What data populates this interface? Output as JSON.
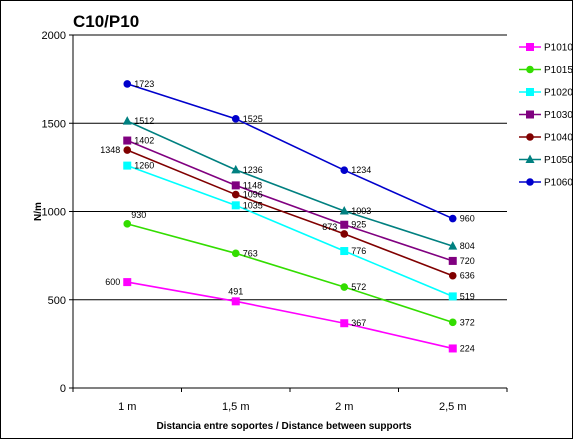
{
  "chart_data": {
    "type": "line",
    "title": "C10/P10",
    "xlabel": "Distancia entre soportes / Distance between supports",
    "ylabel": "N/m",
    "ylim": [
      0,
      2000
    ],
    "yticks": [
      0,
      500,
      1000,
      1500,
      2000
    ],
    "grid": "horizontal",
    "legend_position": "right",
    "categories": [
      "1 m",
      "1,5 m",
      "2 m",
      "2,5 m"
    ],
    "series": [
      {
        "name": "P1010",
        "color": "#ff00ff",
        "marker": "square",
        "values": [
          600,
          491,
          367,
          224
        ],
        "labels": [
          "600",
          "491",
          "367",
          "224"
        ]
      },
      {
        "name": "P1015",
        "color": "#33dd00",
        "marker": "circle",
        "values": [
          930,
          763,
          572,
          372
        ],
        "labels": [
          "930",
          "763",
          "572",
          "372"
        ]
      },
      {
        "name": "P1020",
        "color": "#00ffff",
        "marker": "square",
        "values": [
          1260,
          1035,
          776,
          519
        ],
        "labels": [
          "1260",
          "1035",
          "776",
          "519"
        ]
      },
      {
        "name": "P1030",
        "color": "#800080",
        "marker": "square",
        "values": [
          1402,
          1148,
          925,
          720
        ],
        "labels": [
          "1402",
          "1148",
          "925",
          "720"
        ]
      },
      {
        "name": "P1040",
        "color": "#800000",
        "marker": "circle",
        "values": [
          1348,
          1096,
          873,
          636
        ],
        "labels": [
          "1348",
          "1096",
          "873",
          "636"
        ]
      },
      {
        "name": "P1050",
        "color": "#008080",
        "marker": "triangle",
        "values": [
          1512,
          1236,
          1003,
          804
        ],
        "labels": [
          "1512",
          "1236",
          "1003",
          "804"
        ]
      },
      {
        "name": "P1060",
        "color": "#0000cc",
        "marker": "circle",
        "values": [
          1723,
          1525,
          1234,
          960
        ],
        "labels": [
          "1723",
          "1525",
          "1234",
          "960"
        ]
      }
    ]
  }
}
